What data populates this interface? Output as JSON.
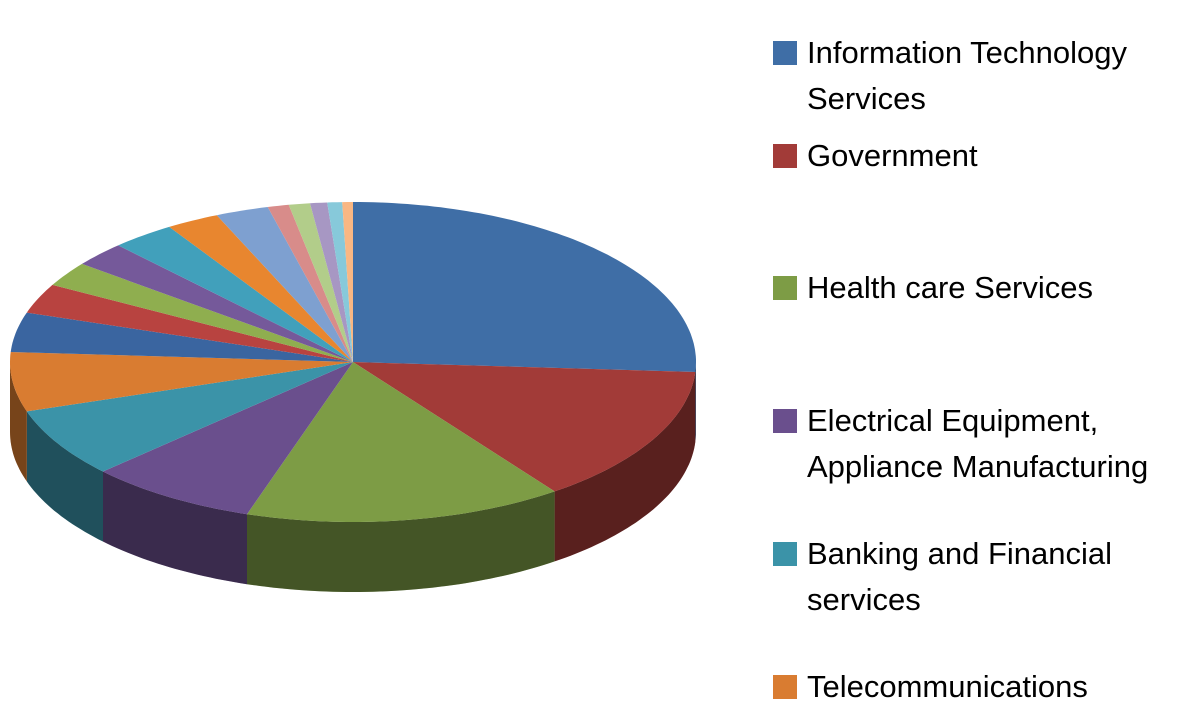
{
  "chart_data": {
    "type": "pie",
    "categories": [
      "Information Technology Services",
      "Government",
      "Health care Services",
      "Electrical Equipment, Appliance Manufacturing",
      "Banking and Financial services",
      "Telecommunications",
      null,
      null,
      null,
      null,
      null,
      null,
      null,
      null,
      null,
      null,
      null,
      null
    ],
    "values": [
      26,
      14,
      15,
      8,
      7,
      6,
      4,
      3,
      2.5,
      2.5,
      3,
      2.5,
      2.5,
      1,
      1,
      0.8,
      0.7,
      0.5
    ],
    "colors": [
      "#3f6ea6",
      "#a23b38",
      "#7d9c45",
      "#6a4f8d",
      "#3b93a8",
      "#d97c31",
      "#3a65a0",
      "#b84340",
      "#8fae4f",
      "#75599a",
      "#41a0bb",
      "#e8862f",
      "#7ea0d0",
      "#d88c8a",
      "#b2cd8a",
      "#a797c3",
      "#87c9da",
      "#f9b783"
    ],
    "legend": "right"
  }
}
